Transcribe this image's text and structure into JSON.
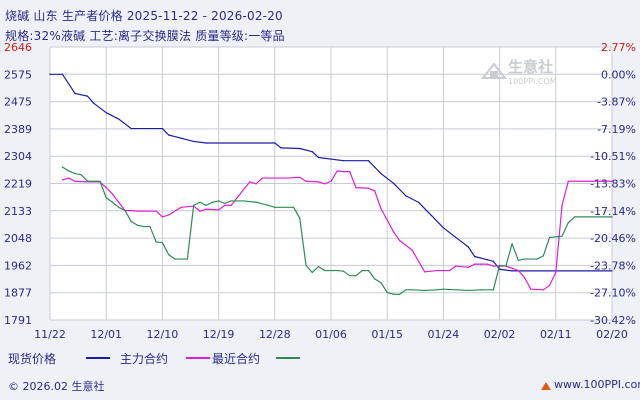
{
  "header": {
    "title_line1": "烧碱  山东  生产者价格  2025-11-22 - 2026-02-20",
    "title_line2": "规格:32%液碱  工艺:离子交换膜法  质量等级:一等品"
  },
  "watermark": {
    "brand": "生意社",
    "url": "100PPI.COM"
  },
  "footer": {
    "copyright": "© 2026.02 生意社",
    "url": "www.100PPI.com"
  },
  "legend": {
    "spot_label": "现货价格",
    "main_label": "主力合约",
    "recent_label": "最近合约"
  },
  "colors": {
    "spot": "#1c1ca8",
    "main": "#e01fd0",
    "recent": "#2e8b57",
    "grid": "#c8ccd6",
    "axis_text": "#2a2a88",
    "left_axis_top": "#d41a1a",
    "right_axis_top": "#d41a1a"
  },
  "chart_data": {
    "type": "line",
    "xlabel": "",
    "ylabel": "",
    "x_start": "2025-11-22",
    "x_end": "2026-02-20",
    "x_ticks": [
      "11/22",
      "12/01",
      "12/10",
      "12/19",
      "12/28",
      "01/06",
      "01/15",
      "01/24",
      "02/02",
      "02/11",
      "02/20"
    ],
    "y_left_ticks": [
      "2646",
      "2575",
      "2475",
      "2389",
      "2304",
      "2219",
      "2133",
      "2048",
      "1962",
      "1877",
      "1791"
    ],
    "y_right_ticks": [
      "2.77%",
      "0.00%",
      "-3.87%",
      "-7.19%",
      "-10.51%",
      "-13.83%",
      "-17.14%",
      "-20.46%",
      "-23.78%",
      "-27.10%",
      "-30.42%"
    ],
    "ylim": [
      1791,
      2646
    ],
    "series": [
      {
        "name": "现货价格",
        "values": [
          [
            "2025-11-22",
            2575
          ],
          [
            "2025-11-24",
            2575
          ],
          [
            "2025-11-26",
            2505
          ],
          [
            "2025-11-28",
            2495
          ],
          [
            "2025-11-29",
            2470
          ],
          [
            "2025-12-01",
            2440
          ],
          [
            "2025-12-03",
            2420
          ],
          [
            "2025-12-05",
            2390
          ],
          [
            "2025-12-10",
            2390
          ],
          [
            "2025-12-11",
            2370
          ],
          [
            "2025-12-13",
            2360
          ],
          [
            "2025-12-15",
            2350
          ],
          [
            "2025-12-17",
            2345
          ],
          [
            "2025-12-28",
            2345
          ],
          [
            "2025-12-29",
            2330
          ],
          [
            "2026-01-01",
            2328
          ],
          [
            "2026-01-03",
            2318
          ],
          [
            "2026-01-04",
            2300
          ],
          [
            "2026-01-08",
            2290
          ],
          [
            "2026-01-12",
            2290
          ],
          [
            "2026-01-13",
            2270
          ],
          [
            "2026-01-14",
            2250
          ],
          [
            "2026-01-16",
            2220
          ],
          [
            "2026-01-18",
            2180
          ],
          [
            "2026-01-20",
            2160
          ],
          [
            "2026-01-22",
            2120
          ],
          [
            "2026-01-24",
            2080
          ],
          [
            "2026-01-26",
            2050
          ],
          [
            "2026-01-28",
            2020
          ],
          [
            "2026-01-29",
            1990
          ],
          [
            "2026-01-31",
            1980
          ],
          [
            "2026-02-01",
            1975
          ],
          [
            "2026-02-02",
            1950
          ],
          [
            "2026-02-04",
            1945
          ],
          [
            "2026-02-20",
            1945
          ]
        ]
      },
      {
        "name": "主力合约",
        "values": [
          [
            "2025-11-24",
            2230
          ],
          [
            "2025-11-25",
            2236
          ],
          [
            "2025-11-26",
            2226
          ],
          [
            "2025-11-28",
            2224
          ],
          [
            "2025-11-30",
            2224
          ],
          [
            "2025-12-01",
            2206
          ],
          [
            "2025-12-02",
            2186
          ],
          [
            "2025-12-03",
            2160
          ],
          [
            "2025-12-04",
            2134
          ],
          [
            "2025-12-05",
            2134
          ],
          [
            "2025-12-06",
            2132
          ],
          [
            "2025-12-09",
            2132
          ],
          [
            "2025-12-10",
            2114
          ],
          [
            "2025-12-11",
            2120
          ],
          [
            "2025-12-13",
            2144
          ],
          [
            "2025-12-15",
            2148
          ],
          [
            "2025-12-16",
            2132
          ],
          [
            "2025-12-17",
            2138
          ],
          [
            "2025-12-19",
            2136
          ],
          [
            "2025-12-20",
            2150
          ],
          [
            "2025-12-21",
            2150
          ],
          [
            "2025-12-23",
            2200
          ],
          [
            "2025-12-24",
            2224
          ],
          [
            "2025-12-25",
            2218
          ],
          [
            "2025-12-26",
            2236
          ],
          [
            "2025-12-30",
            2236
          ],
          [
            "2026-01-01",
            2238
          ],
          [
            "2026-01-02",
            2226
          ],
          [
            "2026-01-04",
            2224
          ],
          [
            "2026-01-05",
            2218
          ],
          [
            "2026-01-06",
            2226
          ],
          [
            "2026-01-07",
            2258
          ],
          [
            "2026-01-08",
            2256
          ],
          [
            "2026-01-09",
            2256
          ],
          [
            "2026-01-10",
            2206
          ],
          [
            "2026-01-12",
            2204
          ],
          [
            "2026-01-13",
            2196
          ],
          [
            "2026-01-14",
            2140
          ],
          [
            "2026-01-16",
            2068
          ],
          [
            "2026-01-17",
            2040
          ],
          [
            "2026-01-19",
            2010
          ],
          [
            "2026-01-21",
            1942
          ],
          [
            "2026-01-23",
            1946
          ],
          [
            "2026-01-24",
            1946
          ],
          [
            "2026-01-25",
            1946
          ],
          [
            "2026-01-26",
            1960
          ],
          [
            "2026-01-28",
            1956
          ],
          [
            "2026-01-29",
            1966
          ],
          [
            "2026-01-30",
            1966
          ],
          [
            "2026-01-31",
            1966
          ],
          [
            "2026-02-01",
            1960
          ],
          [
            "2026-02-03",
            1960
          ],
          [
            "2026-02-05",
            1946
          ],
          [
            "2026-02-06",
            1924
          ],
          [
            "2026-02-07",
            1888
          ],
          [
            "2026-02-09",
            1886
          ],
          [
            "2026-02-10",
            1900
          ],
          [
            "2026-02-11",
            1940
          ],
          [
            "2026-02-12",
            2150
          ],
          [
            "2026-02-13",
            2226
          ],
          [
            "2026-02-20",
            2226
          ]
        ]
      },
      {
        "name": "最近合约",
        "values": [
          [
            "2025-11-24",
            2270
          ],
          [
            "2025-11-25",
            2258
          ],
          [
            "2025-11-26",
            2250
          ],
          [
            "2025-11-27",
            2246
          ],
          [
            "2025-11-28",
            2226
          ],
          [
            "2025-11-30",
            2226
          ],
          [
            "2025-12-01",
            2174
          ],
          [
            "2025-12-02",
            2160
          ],
          [
            "2025-12-03",
            2144
          ],
          [
            "2025-12-04",
            2134
          ],
          [
            "2025-12-05",
            2100
          ],
          [
            "2025-12-06",
            2088
          ],
          [
            "2025-12-07",
            2084
          ],
          [
            "2025-12-08",
            2084
          ],
          [
            "2025-12-09",
            2036
          ],
          [
            "2025-12-10",
            2034
          ],
          [
            "2025-12-11",
            1996
          ],
          [
            "2025-12-12",
            1982
          ],
          [
            "2025-12-14",
            1982
          ],
          [
            "2025-12-15",
            2150
          ],
          [
            "2025-12-16",
            2160
          ],
          [
            "2025-12-17",
            2150
          ],
          [
            "2025-12-18",
            2160
          ],
          [
            "2025-12-19",
            2164
          ],
          [
            "2025-12-20",
            2156
          ],
          [
            "2025-12-21",
            2164
          ],
          [
            "2025-12-23",
            2164
          ],
          [
            "2025-12-25",
            2160
          ],
          [
            "2025-12-27",
            2150
          ],
          [
            "2025-12-28",
            2144
          ],
          [
            "2025-12-31",
            2144
          ],
          [
            "2026-01-01",
            2110
          ],
          [
            "2026-01-02",
            1962
          ],
          [
            "2026-01-03",
            1940
          ],
          [
            "2026-01-04",
            1958
          ],
          [
            "2026-01-05",
            1946
          ],
          [
            "2026-01-06",
            1946
          ],
          [
            "2026-01-07",
            1946
          ],
          [
            "2026-01-08",
            1944
          ],
          [
            "2026-01-09",
            1930
          ],
          [
            "2026-01-10",
            1930
          ],
          [
            "2026-01-11",
            1946
          ],
          [
            "2026-01-12",
            1946
          ],
          [
            "2026-01-13",
            1920
          ],
          [
            "2026-01-14",
            1908
          ],
          [
            "2026-01-15",
            1878
          ],
          [
            "2026-01-16",
            1872
          ],
          [
            "2026-01-17",
            1872
          ],
          [
            "2026-01-18",
            1886
          ],
          [
            "2026-01-19",
            1886
          ],
          [
            "2026-01-21",
            1884
          ],
          [
            "2026-01-23",
            1886
          ],
          [
            "2026-01-24",
            1888
          ],
          [
            "2026-01-26",
            1886
          ],
          [
            "2026-01-28",
            1884
          ],
          [
            "2026-01-30",
            1886
          ],
          [
            "2026-02-01",
            1886
          ],
          [
            "2026-02-02",
            1962
          ],
          [
            "2026-02-03",
            1960
          ],
          [
            "2026-02-04",
            2030
          ],
          [
            "2026-02-05",
            1978
          ],
          [
            "2026-02-06",
            1982
          ],
          [
            "2026-02-08",
            1982
          ],
          [
            "2026-02-09",
            1992
          ],
          [
            "2026-02-10",
            2050
          ],
          [
            "2026-02-12",
            2054
          ],
          [
            "2026-02-13",
            2096
          ],
          [
            "2026-02-14",
            2114
          ],
          [
            "2026-02-20",
            2114
          ]
        ]
      }
    ]
  }
}
